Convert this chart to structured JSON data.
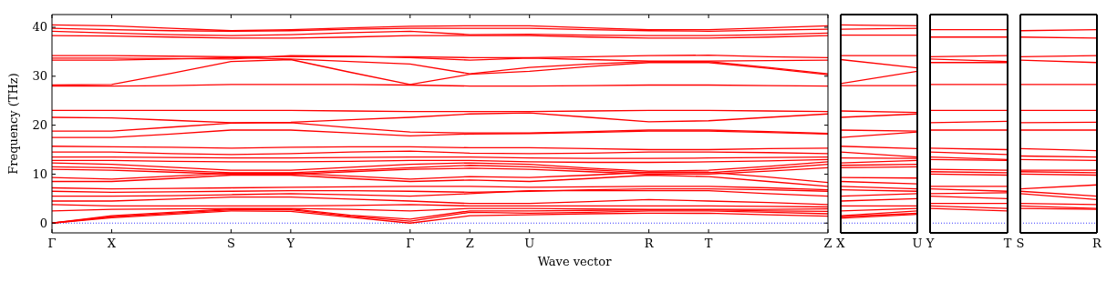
{
  "chart_data": [
    {
      "type": "line",
      "xlabel": "Wave vector",
      "ylabel": "Frequency (THz)",
      "categories": [
        "Γ",
        "X",
        null,
        "S",
        "Y",
        null,
        "Γ",
        "Z",
        "U",
        null,
        "R",
        "T",
        null,
        "Z"
      ],
      "ylim": [
        -2,
        42.6
      ],
      "yticks": [
        0,
        10,
        20,
        30,
        40
      ],
      "grid": false,
      "ref_lines": [
        {
          "axis": "y",
          "value": 0,
          "color": "#0000ff",
          "line_style": "dotted"
        }
      ],
      "series": [
        {
          "color": "#ff0000",
          "values": [
            40.5,
            40.3,
            39.8,
            39.3,
            39.5,
            39.9,
            40.2,
            40.3,
            40.3,
            39.9,
            39.5,
            39.5,
            39.9,
            40.3
          ]
        },
        {
          "color": "#ff0000",
          "values": [
            39.8,
            39.5,
            39.3,
            39.2,
            39.3,
            39.6,
            39.8,
            39.8,
            39.8,
            39.5,
            39.3,
            39.2,
            39.4,
            39.6
          ]
        },
        {
          "color": "#ff0000",
          "values": [
            39.2,
            38.8,
            38.5,
            38.3,
            38.5,
            38.9,
            39.2,
            38.5,
            38.6,
            38.4,
            38.3,
            38.3,
            38.5,
            38.8
          ]
        },
        {
          "color": "#ff0000",
          "values": [
            38.3,
            38.2,
            38.0,
            37.8,
            37.8,
            38.0,
            38.3,
            38.3,
            38.3,
            38.0,
            37.8,
            37.8,
            38.0,
            38.3
          ]
        },
        {
          "color": "#ff0000",
          "values": [
            34.2,
            34.2,
            34.1,
            34.0,
            34.0,
            34.0,
            34.0,
            33.8,
            33.8,
            34.0,
            34.2,
            34.3,
            34.0,
            33.8
          ]
        },
        {
          "color": "#ff0000",
          "values": [
            33.7,
            33.7,
            33.6,
            33.5,
            34.2,
            34.1,
            33.8,
            33.3,
            33.7,
            33.4,
            33.1,
            33.1,
            33.2,
            33.3
          ]
        },
        {
          "color": "#ff0000",
          "values": [
            33.3,
            33.3,
            33.5,
            33.8,
            33.5,
            33.0,
            32.5,
            30.5,
            31.8,
            32.5,
            33.0,
            33.0,
            31.8,
            30.5
          ]
        },
        {
          "color": "#ff0000",
          "values": [
            28.2,
            28.3,
            30.6,
            33.0,
            33.4,
            30.8,
            28.3,
            30.4,
            31.0,
            32.0,
            32.8,
            32.8,
            31.6,
            30.3
          ]
        },
        {
          "color": "#ff0000",
          "values": [
            28.0,
            28.0,
            28.1,
            28.3,
            28.3,
            28.3,
            28.2,
            28.0,
            28.0,
            28.1,
            28.2,
            28.2,
            28.1,
            28.0
          ]
        },
        {
          "color": "#ff0000",
          "values": [
            23.0,
            23.0,
            23.0,
            23.0,
            23.0,
            22.9,
            22.8,
            22.8,
            22.8,
            22.9,
            23.0,
            23.0,
            22.9,
            22.8
          ]
        },
        {
          "color": "#ff0000",
          "values": [
            21.6,
            21.5,
            21.0,
            20.5,
            20.6,
            21.1,
            21.6,
            22.3,
            22.5,
            21.6,
            20.7,
            20.9,
            21.6,
            22.3
          ]
        },
        {
          "color": "#ff0000",
          "values": [
            18.8,
            18.8,
            19.6,
            20.4,
            20.5,
            19.5,
            18.6,
            18.4,
            18.4,
            18.7,
            19.0,
            19.0,
            18.7,
            18.3
          ]
        },
        {
          "color": "#ff0000",
          "values": [
            17.5,
            17.5,
            18.2,
            19.0,
            19.0,
            18.4,
            17.8,
            18.2,
            18.3,
            18.5,
            18.8,
            18.8,
            18.5,
            18.2
          ]
        },
        {
          "color": "#ff0000",
          "values": [
            15.7,
            15.6,
            15.5,
            15.3,
            15.5,
            15.6,
            15.6,
            15.4,
            15.4,
            15.2,
            15.0,
            15.0,
            15.2,
            15.3
          ]
        },
        {
          "color": "#ff0000",
          "values": [
            14.5,
            14.5,
            14.2,
            14.0,
            14.2,
            14.5,
            14.7,
            14.3,
            14.2,
            14.3,
            14.5,
            14.5,
            14.4,
            14.2
          ]
        },
        {
          "color": "#ff0000",
          "values": [
            13.5,
            13.5,
            13.4,
            13.3,
            13.3,
            13.4,
            13.5,
            13.5,
            13.3,
            13.2,
            13.2,
            13.3,
            13.4,
            13.5
          ]
        },
        {
          "color": "#ff0000",
          "values": [
            12.8,
            12.8,
            12.6,
            12.5,
            12.5,
            12.6,
            12.8,
            12.8,
            12.5,
            12.4,
            12.4,
            12.5,
            12.7,
            13.0
          ]
        },
        {
          "color": "#ff0000",
          "values": [
            12.3,
            12.0,
            11.4,
            10.8,
            10.8,
            11.4,
            12.0,
            12.3,
            12.0,
            11.2,
            10.6,
            10.8,
            11.6,
            12.5
          ]
        },
        {
          "color": "#ff0000",
          "values": [
            11.5,
            11.3,
            10.8,
            10.3,
            10.3,
            10.8,
            11.3,
            11.8,
            11.5,
            10.9,
            10.3,
            10.3,
            11.1,
            12.0
          ]
        },
        {
          "color": "#ff0000",
          "values": [
            11.0,
            10.8,
            10.4,
            10.0,
            10.0,
            10.5,
            11.0,
            11.2,
            11.0,
            10.5,
            10.0,
            10.0,
            10.6,
            11.3
          ]
        },
        {
          "color": "#ff0000",
          "values": [
            9.3,
            9.0,
            9.6,
            10.2,
            10.2,
            9.6,
            9.0,
            9.5,
            9.3,
            9.8,
            10.4,
            10.4,
            9.4,
            8.3
          ]
        },
        {
          "color": "#ff0000",
          "values": [
            8.5,
            8.5,
            9.1,
            9.8,
            9.8,
            9.1,
            8.5,
            8.8,
            8.5,
            9.1,
            9.8,
            9.5,
            8.5,
            7.5
          ]
        },
        {
          "color": "#ff0000",
          "values": [
            7.2,
            7.0,
            7.1,
            7.2,
            7.3,
            7.4,
            7.5,
            7.5,
            7.3,
            7.4,
            7.5,
            7.5,
            7.2,
            6.8
          ]
        },
        {
          "color": "#ff0000",
          "values": [
            6.5,
            6.3,
            6.4,
            6.5,
            6.6,
            6.6,
            6.5,
            6.3,
            6.5,
            6.8,
            7.0,
            7.0,
            6.8,
            6.5
          ]
        },
        {
          "color": "#ff0000",
          "values": [
            5.5,
            5.5,
            5.6,
            5.8,
            6.0,
            5.8,
            5.5,
            6.0,
            6.6,
            6.6,
            6.6,
            6.6,
            6.0,
            5.5
          ]
        },
        {
          "color": "#ff0000",
          "values": [
            4.5,
            4.5,
            4.9,
            5.3,
            5.3,
            4.9,
            4.5,
            4.0,
            4.0,
            4.4,
            4.8,
            4.5,
            4.2,
            3.8
          ]
        },
        {
          "color": "#ff0000",
          "values": [
            3.8,
            3.5,
            3.5,
            3.5,
            3.5,
            3.6,
            3.8,
            3.5,
            3.5,
            3.5,
            3.5,
            3.5,
            3.4,
            3.3
          ]
        },
        {
          "color": "#ff0000",
          "values": [
            2.5,
            2.8,
            2.9,
            3.0,
            3.0,
            2.8,
            2.5,
            3.0,
            3.0,
            2.9,
            2.8,
            2.8,
            2.8,
            2.9
          ]
        },
        {
          "color": "#ff0000",
          "values": [
            0,
            1.5,
            2.2,
            2.9,
            2.9,
            1.6,
            0.8,
            2.5,
            2.5,
            2.6,
            2.7,
            2.7,
            2.5,
            2.4
          ]
        },
        {
          "color": "#ff0000",
          "values": [
            0,
            1.3,
            2.0,
            2.7,
            2.7,
            1.4,
            0.4,
            2.2,
            2.0,
            2.2,
            2.5,
            2.5,
            2.2,
            1.9
          ]
        },
        {
          "color": "#ff0000",
          "values": [
            0,
            1.1,
            1.8,
            2.5,
            2.4,
            1.2,
            0,
            1.5,
            1.7,
            1.9,
            2.0,
            2.0,
            1.7,
            1.4
          ]
        }
      ]
    },
    {
      "type": "line",
      "categories": [
        "X",
        "U"
      ],
      "ylim": [
        -2,
        42.6
      ],
      "tick_labels": "x",
      "ref_lines": [
        {
          "axis": "y",
          "value": 0,
          "color": "#0000ff",
          "line_style": "dotted"
        }
      ],
      "series": [
        {
          "color": "#ff0000",
          "values": [
            40.5,
            40.3
          ]
        },
        {
          "color": "#ff0000",
          "values": [
            39.6,
            39.8
          ]
        },
        {
          "color": "#ff0000",
          "values": [
            38.4,
            38.4
          ]
        },
        {
          "color": "#ff0000",
          "values": [
            34.2,
            34.2
          ]
        },
        {
          "color": "#ff0000",
          "values": [
            33.4,
            31.7
          ]
        },
        {
          "color": "#ff0000",
          "values": [
            28.5,
            31.0
          ]
        },
        {
          "color": "#ff0000",
          "values": [
            28.1,
            28.1
          ]
        },
        {
          "color": "#ff0000",
          "values": [
            22.9,
            22.6
          ]
        },
        {
          "color": "#ff0000",
          "values": [
            21.6,
            22.3
          ]
        },
        {
          "color": "#ff0000",
          "values": [
            19.0,
            18.8
          ]
        },
        {
          "color": "#ff0000",
          "values": [
            17.5,
            18.6
          ]
        },
        {
          "color": "#ff0000",
          "values": [
            15.7,
            15.2
          ]
        },
        {
          "color": "#ff0000",
          "values": [
            14.5,
            13.5
          ]
        },
        {
          "color": "#ff0000",
          "values": [
            13.3,
            13.2
          ]
        },
        {
          "color": "#ff0000",
          "values": [
            12.3,
            12.8
          ]
        },
        {
          "color": "#ff0000",
          "values": [
            11.8,
            12.0
          ]
        },
        {
          "color": "#ff0000",
          "values": [
            11.3,
            11.5
          ]
        },
        {
          "color": "#ff0000",
          "values": [
            9.3,
            9.2
          ]
        },
        {
          "color": "#ff0000",
          "values": [
            8.5,
            8.0
          ]
        },
        {
          "color": "#ff0000",
          "values": [
            7.5,
            7.0
          ]
        },
        {
          "color": "#ff0000",
          "values": [
            6.8,
            6.5
          ]
        },
        {
          "color": "#ff0000",
          "values": [
            5.5,
            6.0
          ]
        },
        {
          "color": "#ff0000",
          "values": [
            4.5,
            5.0
          ]
        },
        {
          "color": "#ff0000",
          "values": [
            3.5,
            3.5
          ]
        },
        {
          "color": "#ff0000",
          "values": [
            2.5,
            3.0
          ]
        },
        {
          "color": "#ff0000",
          "values": [
            1.5,
            2.5
          ]
        },
        {
          "color": "#ff0000",
          "values": [
            1.3,
            2.0
          ]
        },
        {
          "color": "#ff0000",
          "values": [
            1.0,
            1.8
          ]
        }
      ]
    },
    {
      "type": "line",
      "categories": [
        "Y",
        "T"
      ],
      "ylim": [
        -2,
        42.6
      ],
      "tick_labels": "x",
      "ref_lines": [
        {
          "axis": "y",
          "value": 0,
          "color": "#0000ff",
          "line_style": "dotted"
        }
      ],
      "series": [
        {
          "color": "#ff0000",
          "values": [
            39.5,
            39.5
          ]
        },
        {
          "color": "#ff0000",
          "values": [
            38.0,
            38.0
          ]
        },
        {
          "color": "#ff0000",
          "values": [
            34.0,
            34.2
          ]
        },
        {
          "color": "#ff0000",
          "values": [
            33.5,
            33.0
          ]
        },
        {
          "color": "#ff0000",
          "values": [
            32.8,
            32.8
          ]
        },
        {
          "color": "#ff0000",
          "values": [
            28.3,
            28.3
          ]
        },
        {
          "color": "#ff0000",
          "values": [
            23.0,
            23.0
          ]
        },
        {
          "color": "#ff0000",
          "values": [
            20.5,
            20.8
          ]
        },
        {
          "color": "#ff0000",
          "values": [
            19.0,
            19.0
          ]
        },
        {
          "color": "#ff0000",
          "values": [
            15.3,
            15.0
          ]
        },
        {
          "color": "#ff0000",
          "values": [
            14.5,
            14.0
          ]
        },
        {
          "color": "#ff0000",
          "values": [
            13.5,
            13.0
          ]
        },
        {
          "color": "#ff0000",
          "values": [
            13.0,
            12.8
          ]
        },
        {
          "color": "#ff0000",
          "values": [
            11.0,
            10.8
          ]
        },
        {
          "color": "#ff0000",
          "values": [
            10.5,
            10.3
          ]
        },
        {
          "color": "#ff0000",
          "values": [
            10.0,
            9.8
          ]
        },
        {
          "color": "#ff0000",
          "values": [
            7.5,
            7.5
          ]
        },
        {
          "color": "#ff0000",
          "values": [
            7.0,
            6.5
          ]
        },
        {
          "color": "#ff0000",
          "values": [
            6.0,
            6.2
          ]
        },
        {
          "color": "#ff0000",
          "values": [
            5.5,
            5.0
          ]
        },
        {
          "color": "#ff0000",
          "values": [
            4.0,
            4.0
          ]
        },
        {
          "color": "#ff0000",
          "values": [
            3.5,
            3.0
          ]
        },
        {
          "color": "#ff0000",
          "values": [
            3.0,
            2.5
          ]
        }
      ]
    },
    {
      "type": "line",
      "categories": [
        "S",
        "R"
      ],
      "ylim": [
        -2,
        42.6
      ],
      "tick_labels": "x",
      "ref_lines": [
        {
          "axis": "y",
          "value": 0,
          "color": "#0000ff",
          "line_style": "dotted"
        }
      ],
      "series": [
        {
          "color": "#ff0000",
          "values": [
            39.3,
            39.5
          ]
        },
        {
          "color": "#ff0000",
          "values": [
            38.0,
            37.8
          ]
        },
        {
          "color": "#ff0000",
          "values": [
            34.0,
            34.2
          ]
        },
        {
          "color": "#ff0000",
          "values": [
            33.3,
            32.8
          ]
        },
        {
          "color": "#ff0000",
          "values": [
            28.3,
            28.3
          ]
        },
        {
          "color": "#ff0000",
          "values": [
            23.0,
            23.0
          ]
        },
        {
          "color": "#ff0000",
          "values": [
            20.5,
            20.6
          ]
        },
        {
          "color": "#ff0000",
          "values": [
            19.0,
            19.0
          ]
        },
        {
          "color": "#ff0000",
          "values": [
            15.2,
            14.8
          ]
        },
        {
          "color": "#ff0000",
          "values": [
            13.7,
            13.5
          ]
        },
        {
          "color": "#ff0000",
          "values": [
            13.0,
            12.8
          ]
        },
        {
          "color": "#ff0000",
          "values": [
            10.8,
            10.8
          ]
        },
        {
          "color": "#ff0000",
          "values": [
            10.5,
            10.3
          ]
        },
        {
          "color": "#ff0000",
          "values": [
            10.0,
            9.8
          ]
        },
        {
          "color": "#ff0000",
          "values": [
            7.0,
            7.8
          ]
        },
        {
          "color": "#ff0000",
          "values": [
            6.5,
            5.5
          ]
        },
        {
          "color": "#ff0000",
          "values": [
            6.0,
            4.8
          ]
        },
        {
          "color": "#ff0000",
          "values": [
            4.0,
            3.8
          ]
        },
        {
          "color": "#ff0000",
          "values": [
            3.5,
            3.0
          ]
        },
        {
          "color": "#ff0000",
          "values": [
            3.0,
            2.8
          ]
        }
      ]
    }
  ]
}
